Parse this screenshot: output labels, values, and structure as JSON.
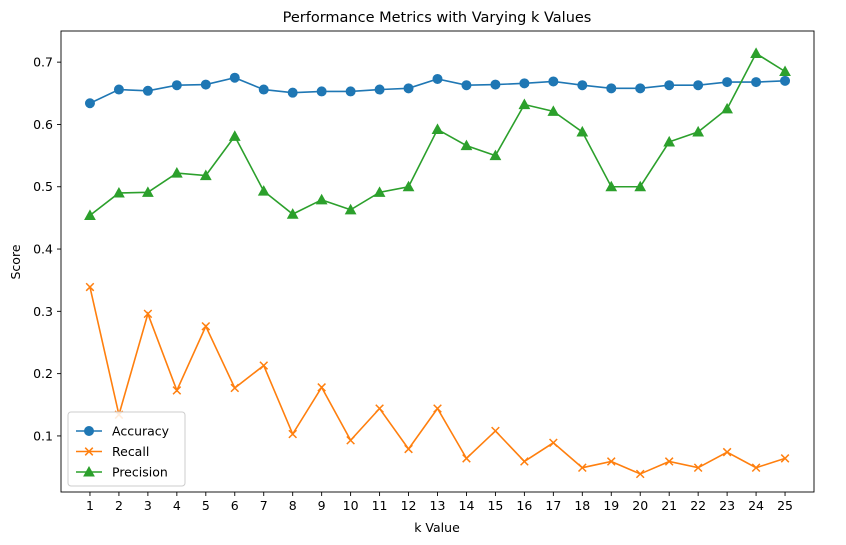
{
  "chart_data": {
    "type": "line",
    "title": "Performance Metrics with Varying k Values",
    "xlabel": "k Value",
    "ylabel": "Score",
    "x": [
      1,
      2,
      3,
      4,
      5,
      6,
      7,
      8,
      9,
      10,
      11,
      12,
      13,
      14,
      15,
      16,
      17,
      18,
      19,
      20,
      21,
      22,
      23,
      24,
      25
    ],
    "xlim": [
      0.0,
      26.0
    ],
    "ylim": [
      0.01,
      0.75
    ],
    "yticks": [
      0.1,
      0.2,
      0.3,
      0.4,
      0.5,
      0.6,
      0.7
    ],
    "ytick_labels": [
      "0.1",
      "0.2",
      "0.3",
      "0.4",
      "0.5",
      "0.6",
      "0.7"
    ],
    "grid": false,
    "legend_position": "lower-left",
    "series": [
      {
        "name": "Accuracy",
        "color": "#1f77b4",
        "marker": "circle",
        "values": [
          0.634,
          0.656,
          0.654,
          0.663,
          0.664,
          0.675,
          0.656,
          0.651,
          0.653,
          0.653,
          0.656,
          0.658,
          0.673,
          0.663,
          0.664,
          0.666,
          0.669,
          0.663,
          0.658,
          0.658,
          0.663,
          0.663,
          0.668,
          0.668,
          0.67
        ]
      },
      {
        "name": "Recall",
        "color": "#ff7f0e",
        "marker": "x",
        "values": [
          0.339,
          0.134,
          0.296,
          0.173,
          0.276,
          0.177,
          0.213,
          0.103,
          0.178,
          0.093,
          0.144,
          0.079,
          0.144,
          0.064,
          0.108,
          0.059,
          0.089,
          0.049,
          0.059,
          0.039,
          0.059,
          0.049,
          0.074,
          0.049,
          0.064
        ]
      },
      {
        "name": "Precision",
        "color": "#2ca02c",
        "marker": "triangle",
        "values": [
          0.454,
          0.49,
          0.491,
          0.522,
          0.518,
          0.581,
          0.493,
          0.456,
          0.479,
          0.463,
          0.491,
          0.5,
          0.592,
          0.566,
          0.55,
          0.632,
          0.621,
          0.588,
          0.5,
          0.5,
          0.572,
          0.588,
          0.625,
          0.714,
          0.685
        ]
      }
    ]
  }
}
